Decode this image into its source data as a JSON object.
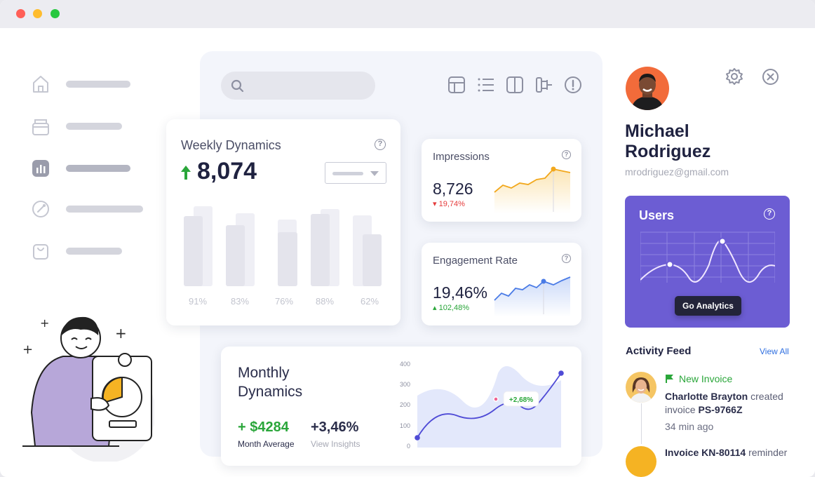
{
  "window": {
    "controls": [
      "close",
      "minimize",
      "maximize"
    ]
  },
  "sidebar": {
    "items": [
      {
        "icon": "home-icon",
        "active": false
      },
      {
        "icon": "box-icon",
        "active": false
      },
      {
        "icon": "chart-icon",
        "active": true
      },
      {
        "icon": "target-icon",
        "active": false
      },
      {
        "icon": "bag-icon",
        "active": false
      }
    ]
  },
  "toolbar": {
    "icons": [
      "table-icon",
      "list-icon",
      "columns-icon",
      "hierarchy-icon",
      "alert-icon"
    ]
  },
  "weekly_dynamics": {
    "title": "Weekly Dynamics",
    "value": "8,074",
    "trend": "up",
    "bars": [
      {
        "label": "91%"
      },
      {
        "label": "83%"
      },
      {
        "label": "76%"
      },
      {
        "label": "88%"
      },
      {
        "label": "62%"
      }
    ]
  },
  "impressions": {
    "title": "Impressions",
    "value": "8,726",
    "delta": "19,74%",
    "trend": "down"
  },
  "engagement": {
    "title": "Engagement Rate",
    "value": "19,46%",
    "delta": "102,48%",
    "trend": "up"
  },
  "monthly_dynamics": {
    "title": "Monthly Dynamics",
    "average": "+ $4284",
    "average_label": "Month Average",
    "insights": "+3,46%",
    "insights_label": "View Insights",
    "tooltip": "+2,68%",
    "y_ticks": [
      "400",
      "300",
      "200",
      "100",
      "0"
    ]
  },
  "profile": {
    "name_first": "Michael",
    "name_last": "Rodriguez",
    "email": "mrodriguez@gmail.com"
  },
  "users_card": {
    "title": "Users",
    "button": "Go Analytics"
  },
  "activity": {
    "title": "Activity Feed",
    "view_all": "View All",
    "items": [
      {
        "event": "New Invoice",
        "person": "Charlotte Brayton",
        "action": "created",
        "object_prefix": "invoice",
        "object": "PS-9766Z",
        "time": "34  min ago"
      },
      {
        "object": "Invoice KN-80114",
        "action": "reminder"
      }
    ]
  },
  "colors": {
    "accent": "#6c5dd3",
    "positive": "#2aa63a",
    "negative": "#e53b3b",
    "link": "#2f6fe0",
    "impressions_line": "#f2a81d",
    "engagement_line": "#4a7be6"
  }
}
